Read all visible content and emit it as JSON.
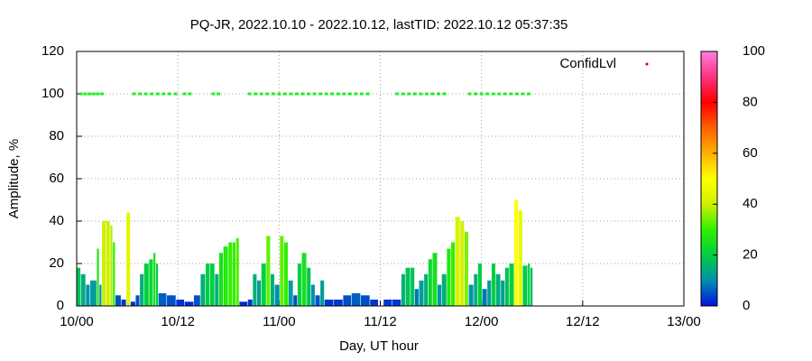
{
  "chart_data": {
    "type": "impulse",
    "title": "PQ-JR, 2022.10.10 - 2022.10.12, lastTID: 2022.10.12 05:37:35",
    "x_label": "Day, UT hour",
    "y_label": "Amplitude, %",
    "xlim": [
      0,
      72
    ],
    "xticks": [
      {
        "value": 0,
        "label": "10/00"
      },
      {
        "value": 12,
        "label": "10/12"
      },
      {
        "value": 24,
        "label": "11/00"
      },
      {
        "value": 36,
        "label": "11/12"
      },
      {
        "value": 48,
        "label": "12/00"
      },
      {
        "value": 60,
        "label": "12/12"
      },
      {
        "value": 72,
        "label": "13/00"
      }
    ],
    "ylim": [
      0,
      120
    ],
    "yticks": [
      0,
      20,
      40,
      60,
      80,
      100,
      120
    ],
    "grid": true,
    "cblim": [
      0,
      100
    ],
    "cbticks": [
      0,
      20,
      40,
      60,
      80,
      100
    ],
    "palette": [
      "#0010e0",
      "#0090b0",
      "#00d040",
      "#30f000",
      "#d0f000",
      "#ffff00",
      "#ffb000",
      "#ff6000",
      "#ff0000",
      "#ff3080",
      "#ff80e0"
    ],
    "amplitude": {
      "x": [
        0,
        0.5,
        1.1,
        1.6,
        2.4,
        2.7,
        3.0,
        3.5,
        4.0,
        4.3,
        4.6,
        5.3,
        5.9,
        6.4,
        7.0,
        7.5,
        8.0,
        8.6,
        9.1,
        9.4,
        9.7,
        10.7,
        11.8,
        12.8,
        13.9,
        14.7,
        15.3,
        15.8,
        16.4,
        16.9,
        17.4,
        18.0,
        18.5,
        18.9,
        19.3,
        20.3,
        20.9,
        21.4,
        21.9,
        22.5,
        23.0,
        23.5,
        24.1,
        24.6,
        25.1,
        25.7,
        26.2,
        26.7,
        27.3,
        27.8,
        28.3,
        28.9,
        29.4,
        30.5,
        31.6,
        32.6,
        33.7,
        34.8,
        35.8,
        36.4,
        37.4,
        38.5,
        39.0,
        39.6,
        40.1,
        40.6,
        41.2,
        41.7,
        42.2,
        42.8,
        43.3,
        43.9,
        44.4,
        44.9,
        45.5,
        46.0,
        46.5,
        47.1,
        47.6,
        48.1,
        48.7,
        49.2,
        49.7,
        50.3,
        50.8,
        51.3,
        51.9,
        52.4,
        52.9,
        53.5,
        53.8
      ],
      "values": [
        18,
        15,
        10,
        12,
        27,
        10,
        40,
        40,
        38,
        30,
        5,
        3,
        44,
        2,
        5,
        15,
        20,
        22,
        25,
        20,
        6,
        5,
        3,
        2,
        5,
        15,
        20,
        20,
        15,
        25,
        28,
        30,
        30,
        32,
        2,
        3,
        15,
        12,
        20,
        33,
        15,
        10,
        33,
        30,
        12,
        5,
        20,
        25,
        18,
        10,
        5,
        12,
        3,
        3,
        5,
        6,
        5,
        3,
        0,
        3,
        3,
        15,
        18,
        18,
        8,
        12,
        15,
        22,
        25,
        10,
        15,
        27,
        30,
        42,
        40,
        35,
        10,
        15,
        20,
        8,
        12,
        20,
        15,
        12,
        18,
        20,
        50,
        45,
        19,
        20,
        18
      ]
    },
    "confidence": {
      "name": "ConfidLvl",
      "color": "#22ee22",
      "legend_marker_color": "#cc0000",
      "x": [
        0.5,
        1.0,
        1.5,
        2.0,
        2.5,
        3.0,
        6.8,
        7.5,
        8.2,
        8.9,
        9.6,
        10.3,
        11.0,
        11.7,
        12.8,
        13.4,
        16.2,
        16.8,
        20.5,
        21.2,
        21.9,
        22.6,
        23.3,
        24.0,
        24.7,
        25.4,
        26.1,
        26.8,
        27.5,
        28.2,
        28.9,
        29.6,
        30.3,
        31.0,
        31.7,
        32.4,
        33.1,
        33.8,
        34.5,
        38.0,
        38.7,
        39.4,
        40.1,
        40.8,
        41.5,
        42.2,
        42.9,
        43.6,
        46.6,
        47.3,
        48.0,
        48.7,
        49.4,
        50.1,
        50.8,
        51.5,
        52.2,
        52.9,
        53.6
      ],
      "values": [
        100,
        100,
        100,
        100,
        100,
        100,
        100,
        100,
        100,
        100,
        100,
        100,
        100,
        100,
        100,
        100,
        100,
        100,
        100,
        100,
        100,
        100,
        100,
        100,
        100,
        100,
        100,
        100,
        100,
        100,
        100,
        100,
        100,
        100,
        100,
        100,
        100,
        100,
        100,
        100,
        100,
        100,
        100,
        100,
        100,
        100,
        100,
        100,
        100,
        100,
        100,
        100,
        100,
        100,
        100,
        100,
        100,
        100,
        100
      ]
    }
  }
}
